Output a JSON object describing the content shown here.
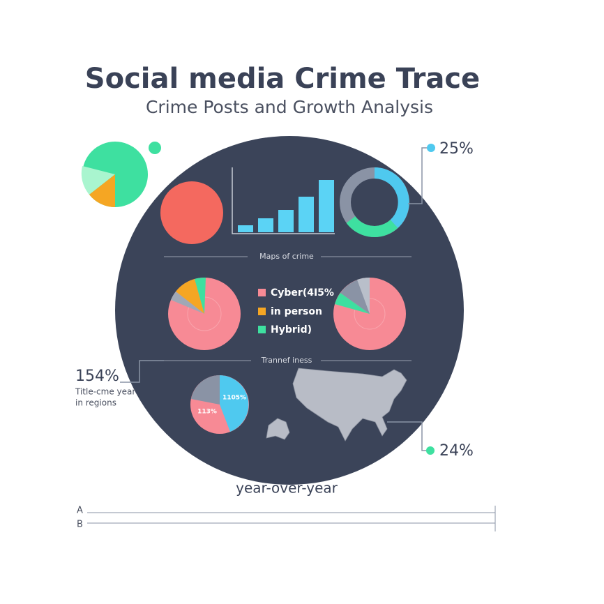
{
  "header": {
    "title": "Social media Crime Trace",
    "subtitle": "Crime Posts and Growth Analysis"
  },
  "callouts": {
    "top_right": "25%",
    "bottom_right": "24%",
    "left": "154%",
    "left_note": [
      "Title-cme year",
      "in regions"
    ]
  },
  "sections": [
    "Maps of crime",
    "Trannef iness"
  ],
  "legend": [
    "Cyber(4I5%",
    "in person",
    "Hybrid)"
  ],
  "pie_labels": [
    "1105%",
    "113%"
  ],
  "footer": {
    "caption": "year-over-year",
    "rows": [
      "A",
      "B"
    ]
  }
}
